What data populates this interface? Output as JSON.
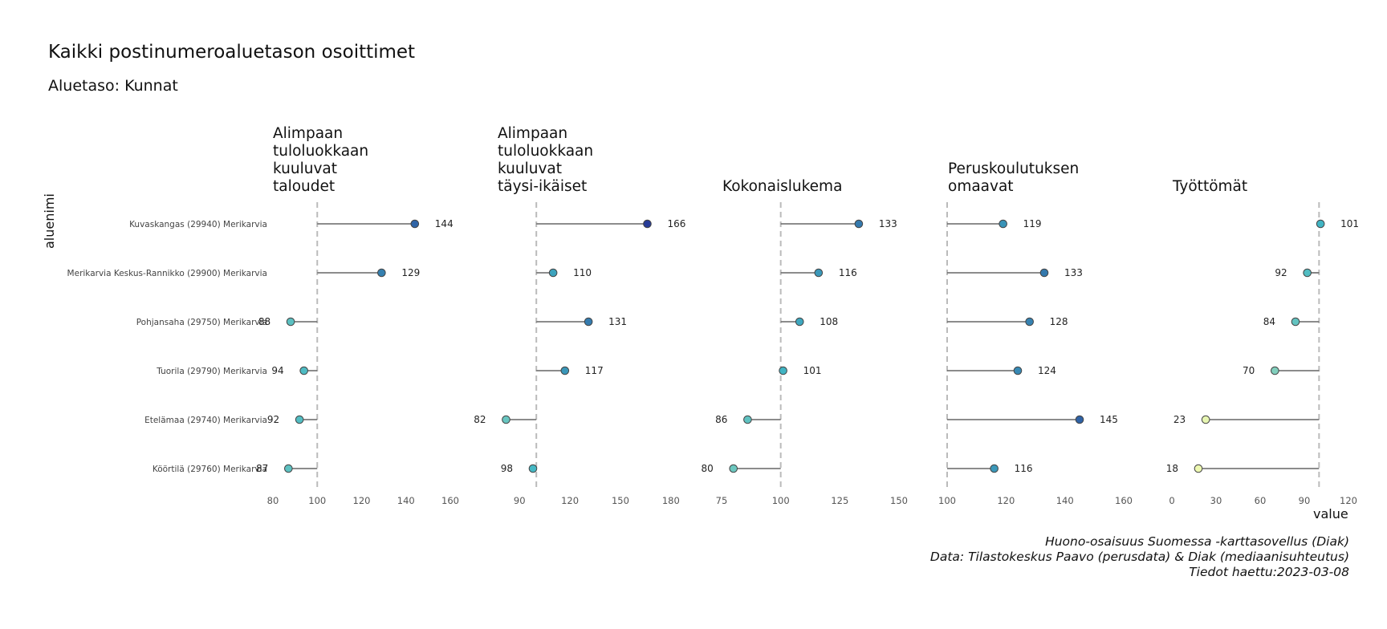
{
  "title": "Kaikki postinumeroaluetason osoittimet",
  "subtitle": "Aluetaso: Kunnat",
  "caption": [
    "Huono-osaisuus Suomessa -karttasovellus (Diak)",
    "Data: Tilastokeskus Paavo (perusdata) & Diak (mediaanisuhteutus)",
    "Tiedot haettu:2023-03-08"
  ],
  "chart_data": {
    "type": "scatter",
    "subtype": "lollipop",
    "ylabel": "aluenimi",
    "xlabel": "value",
    "reference_value": 100,
    "categories": [
      "Kuvaskangas (29940) Merikarvia",
      "Merikarvia Keskus-Rannikko (29900) Merikarvia",
      "Pohjansaha (29750) Merikarvia",
      "Tuorila (29790) Merikarvia",
      "Etelämaa (29740) Merikarvia",
      "Köörtilä (29760) Merikarvia"
    ],
    "panels": [
      {
        "title": "Alimpaan\ntuloluokkaan\nkuuluvat\ntaloudet",
        "values": [
          144,
          129,
          88,
          94,
          92,
          87
        ],
        "xticks": [
          80,
          100,
          120,
          140,
          160
        ],
        "xlim": [
          80,
          160
        ]
      },
      {
        "title": "Alimpaan\ntuloluokkaan\nkuuluvat\ntäysi-ikäiset",
        "values": [
          166,
          110,
          131,
          117,
          82,
          98
        ],
        "xticks": [
          90,
          120,
          150,
          180
        ],
        "xlim": [
          77,
          182
        ]
      },
      {
        "title": "Kokonaislukema",
        "values": [
          133,
          116,
          108,
          101,
          86,
          80
        ],
        "xticks": [
          75,
          100,
          125,
          150
        ],
        "xlim": [
          75,
          150
        ]
      },
      {
        "title": "Peruskoulutuksen\nomaavat",
        "values": [
          119,
          133,
          128,
          124,
          145,
          116
        ],
        "xticks": [
          100,
          120,
          140,
          160
        ],
        "xlim": [
          100,
          160
        ]
      },
      {
        "title": "Työttömät",
        "values": [
          101,
          92,
          84,
          70,
          23,
          18
        ],
        "xticks": [
          0,
          30,
          60,
          90,
          120
        ],
        "xlim": [
          0,
          120
        ]
      }
    ],
    "grid": false,
    "legend": "none",
    "colors": {
      "line": "#666666",
      "reference": "#bbbbbb",
      "low": "#edf8b1",
      "mid": "#41b6c4",
      "high": "#253494"
    }
  }
}
